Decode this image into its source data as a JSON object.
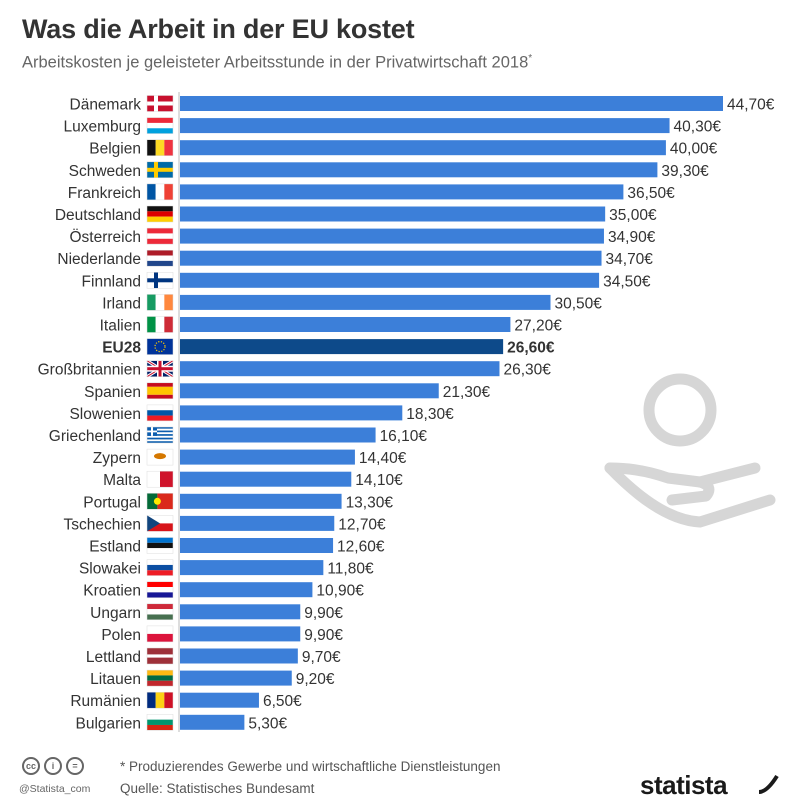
{
  "header": {
    "title": "Was die Arbeit in der EU kostet",
    "subtitle": "Arbeitskosten je geleisteter Arbeitsstunde in der Privatwirtschaft 2018",
    "subtitle_mark": "*"
  },
  "footer": {
    "note": "* Produzierendes Gewerbe und wirtschaftliche Dienstleistungen",
    "source": "Quelle: Statistisches Bundesamt",
    "handle": "@Statista_com",
    "brand": "statista"
  },
  "colors": {
    "bar": "#3c7fd9",
    "highlight": "#0d4a8a",
    "text": "#333333"
  },
  "chart_data": {
    "type": "bar",
    "orientation": "horizontal",
    "categories": [
      "Dänemark",
      "Luxemburg",
      "Belgien",
      "Schweden",
      "Frankreich",
      "Deutschland",
      "Österreich",
      "Niederlande",
      "Finnland",
      "Irland",
      "Italien",
      "EU28",
      "Großbritannien",
      "Spanien",
      "Slowenien",
      "Griechenland",
      "Zypern",
      "Malta",
      "Portugal",
      "Tschechien",
      "Estland",
      "Slowakei",
      "Kroatien",
      "Ungarn",
      "Polen",
      "Lettland",
      "Litauen",
      "Rumänien",
      "Bulgarien"
    ],
    "values": [
      44.7,
      40.3,
      40.0,
      39.3,
      36.5,
      35.0,
      34.9,
      34.7,
      34.5,
      30.5,
      27.2,
      26.6,
      26.3,
      21.3,
      18.3,
      16.1,
      14.4,
      14.1,
      13.3,
      12.7,
      12.6,
      11.8,
      10.9,
      9.9,
      9.9,
      9.7,
      9.2,
      6.5,
      5.3
    ],
    "value_labels": [
      "44,70€",
      "40,30€",
      "40,00€",
      "39,30€",
      "36,50€",
      "35,00€",
      "34,90€",
      "34,70€",
      "34,50€",
      "30,50€",
      "27,20€",
      "26,60€",
      "26,30€",
      "21,30€",
      "18,30€",
      "16,10€",
      "14,40€",
      "14,10€",
      "13,30€",
      "12,70€",
      "12,60€",
      "11,80€",
      "10,90€",
      "9,90€",
      "9,90€",
      "9,70€",
      "9,20€",
      "6,50€",
      "5,30€"
    ],
    "highlight": "EU28",
    "xlim": [
      0,
      44.7
    ],
    "grid": false,
    "legend": "none"
  }
}
